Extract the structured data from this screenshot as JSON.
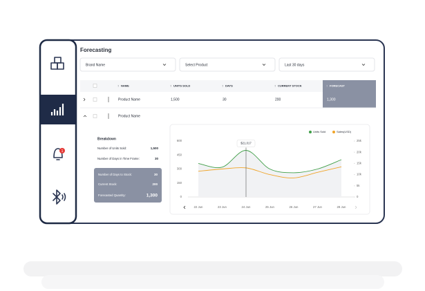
{
  "header": {
    "title": "Forecasting"
  },
  "filters": [
    "Brand Name",
    "Select Product",
    "Last 30 days"
  ],
  "table": {
    "columns": [
      "NAME",
      "UNITS SOLD",
      "DAYS",
      "CURRENT STOCK",
      "FORECAST"
    ],
    "rows": [
      [
        "Product Name",
        "1,500",
        "30",
        "200",
        "1,300"
      ],
      [
        "Product Name"
      ]
    ]
  },
  "sidebar": {
    "badge": "1"
  },
  "breakdown": {
    "title": "Breakdown",
    "items": [
      {
        "label": "Number of Units Sold:",
        "value": "1,500"
      },
      {
        "label": "Number of Days in Time Frame:",
        "value": "30"
      }
    ],
    "summary": [
      {
        "label": "Number of Days to Stock:",
        "value": "30"
      },
      {
        "label": "Current Stock:",
        "value": "200"
      },
      {
        "label": "Forecasted Quantity:",
        "value": "1,300"
      }
    ]
  },
  "chart": {
    "type": "line",
    "categories": [
      "22 Jun",
      "23 Jun",
      "24 Jun",
      "25 Jun",
      "26 Jun",
      "27 Jun",
      "28 Jun"
    ],
    "series": [
      {
        "name": "Units Sold",
        "color": "#3f9e47",
        "values": [
          360,
          320,
          500,
          300,
          260,
          300,
          400
        ]
      },
      {
        "name": "Sales(USD)",
        "color": "#f0a428",
        "values": [
          11500,
          12500,
          13000,
          10000,
          8500,
          11000,
          13500
        ],
        "axis": "y2"
      }
    ],
    "ylim": [
      0,
      600
    ],
    "yticks": [
      0,
      150,
      300,
      450,
      600
    ],
    "y2lim": [
      0,
      25000
    ],
    "y2ticks": [
      {
        "value": 0,
        "label": "0"
      },
      {
        "value": 5000,
        "label": "5k"
      },
      {
        "value": 10000,
        "label": "10k"
      },
      {
        "value": 15000,
        "label": "15k"
      },
      {
        "value": 20000,
        "label": "20k"
      },
      {
        "value": 25000,
        "label": "25k"
      }
    ],
    "tooltip": "$21,017"
  }
}
